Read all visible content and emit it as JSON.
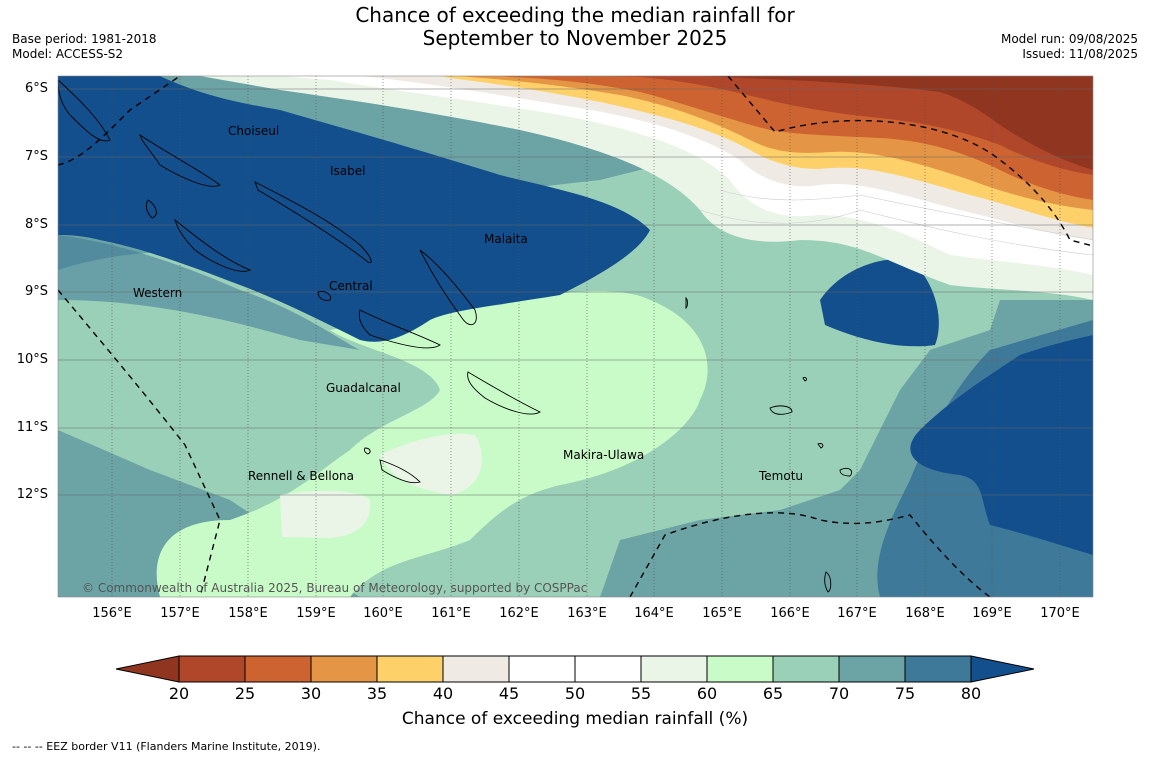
{
  "title": {
    "line1": "Chance of exceeding the median rainfall for",
    "line2": "September to November 2025"
  },
  "meta": {
    "base_period": "Base period: 1981-2018",
    "model": "Model: ACCESS-S2",
    "model_run": "Model run: 09/08/2025",
    "issued": "Issued: 11/08/2025"
  },
  "axes": {
    "lat_labels": [
      "6°S",
      "7°S",
      "8°S",
      "9°S",
      "10°S",
      "11°S",
      "12°S"
    ],
    "lon_labels": [
      "156°E",
      "157°E",
      "158°E",
      "159°E",
      "160°E",
      "161°E",
      "162°E",
      "163°E",
      "164°E",
      "165°E",
      "166°E",
      "167°E",
      "168°E",
      "169°E",
      "170°E"
    ]
  },
  "places": [
    {
      "name": "Choiseul"
    },
    {
      "name": "Isabel"
    },
    {
      "name": "Malaita"
    },
    {
      "name": "Central"
    },
    {
      "name": "Western"
    },
    {
      "name": "Guadalcanal"
    },
    {
      "name": "Makira-Ulawa"
    },
    {
      "name": "Rennell & Bellona"
    },
    {
      "name": "Temotu"
    }
  ],
  "copyright": "© Commonwealth of Australia 2025, Bureau of Meteorology, supported by COSPPac",
  "colorbar": {
    "ticks": [
      "20",
      "25",
      "30",
      "35",
      "40",
      "45",
      "50",
      "55",
      "60",
      "65",
      "70",
      "75",
      "80"
    ],
    "colors": {
      "below20": "#8f3520",
      "b20_25": "#b0462a",
      "b25_30": "#cc6330",
      "b30_35": "#e49545",
      "b35_40": "#fdd06a",
      "b40_45": "#efebe4",
      "b45_50": "#ffffff",
      "b50_55": "#ffffff",
      "b55_60": "#eaf5e8",
      "b60_65": "#c9fbc8",
      "b65_70": "#9bd0b8",
      "b70_75": "#6ca3a5",
      "b75_80": "#3f7999",
      "above80": "#134f8c"
    },
    "label": "Chance of exceeding median rainfall (%)"
  },
  "footnote": "--  --  -- EEZ border V11 (Flanders Marine Institute, 2019)."
}
